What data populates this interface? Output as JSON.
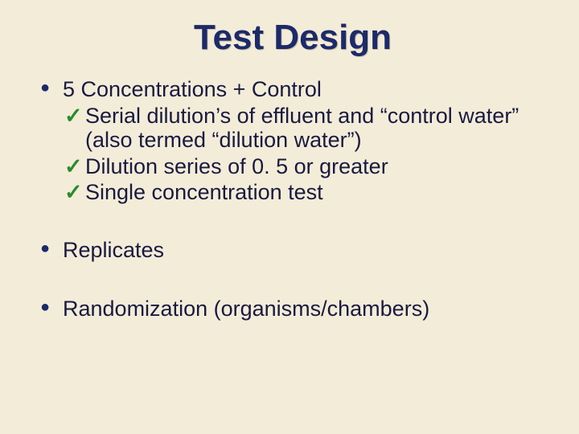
{
  "slide": {
    "background_color": "#f2ecd9",
    "text_color": "#1a1a40",
    "bullet_color": "#1d2a6a",
    "check_color": "#2b8a2b",
    "title": {
      "text": "Test Design",
      "fontsize": 44,
      "color": "#1d2a6a"
    },
    "body_fontsize": 27,
    "items": [
      {
        "level": 1,
        "text": "5 Concentrations  + Control"
      },
      {
        "level": 2,
        "text": "Serial dilution’s of effluent and “control water” (also termed “dilution water”)"
      },
      {
        "level": 2,
        "text": "Dilution series of 0. 5 or greater"
      },
      {
        "level": 2,
        "text": "Single concentration test"
      },
      {
        "level": 1,
        "text": "Replicates"
      },
      {
        "level": 1,
        "text": "Randomization (organisms/chambers)"
      }
    ]
  }
}
